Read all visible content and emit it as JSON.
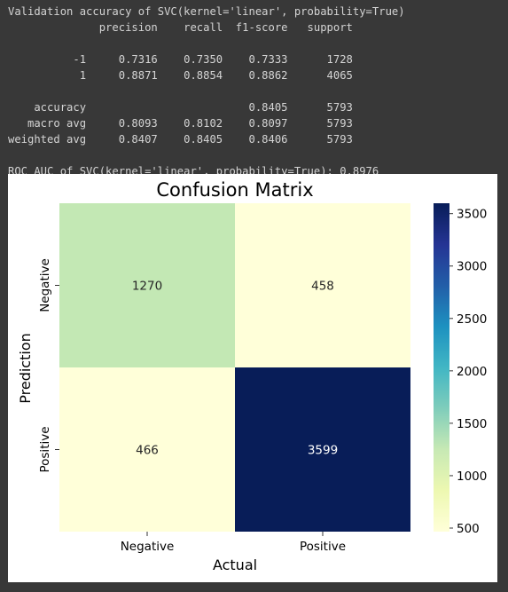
{
  "console": {
    "lines": [
      "Validation accuracy of SVC(kernel='linear', probability=True)",
      "              precision    recall  f1-score   support",
      "",
      "          -1     0.7316    0.7350    0.7333      1728",
      "           1     0.8871    0.8854    0.8862      4065",
      "",
      "    accuracy                         0.8405      5793",
      "   macro avg     0.8093    0.8102    0.8097      5793",
      "weighted avg     0.8407    0.8405    0.8406      5793",
      "",
      "ROC AUC of SVC(kernel='linear', probability=True): 0.8976"
    ]
  },
  "chart_data": {
    "type": "heatmap",
    "title": "Confusion Matrix",
    "xlabel": "Actual",
    "ylabel": "Prediction",
    "x_categories": [
      "Negative",
      "Positive"
    ],
    "y_categories": [
      "Negative",
      "Positive"
    ],
    "values": [
      [
        1270,
        458
      ],
      [
        466,
        3599
      ]
    ],
    "colormap": "YlGnBu",
    "colorbar": {
      "min": 466,
      "max": 3599,
      "ticks": [
        500,
        1000,
        1500,
        2000,
        2500,
        3000,
        3500
      ]
    }
  }
}
